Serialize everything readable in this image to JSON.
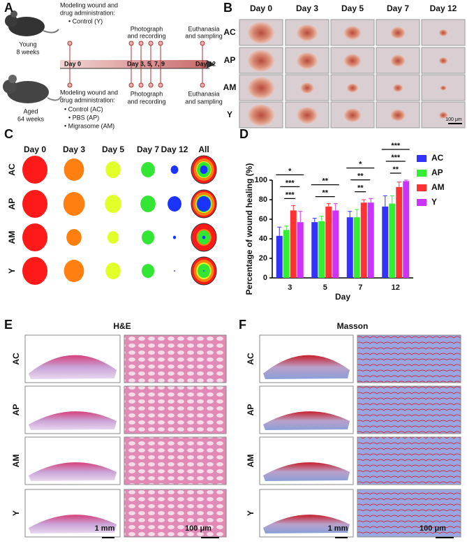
{
  "panel_a": {
    "label": "A",
    "young": [
      "Young",
      "8 weeks"
    ],
    "aged": [
      "Aged",
      "64 weeks"
    ],
    "top_model": [
      "Modeling wound and",
      "drug administration:"
    ],
    "top_groups": [
      "• Control (Y)"
    ],
    "photo_top": [
      "Photograph",
      "and recording"
    ],
    "end_top": [
      "Euthanasia",
      "and sampling"
    ],
    "days": [
      "Day 0",
      "Day 3,  5,  7,  9",
      "Day 12"
    ],
    "bottom_model": [
      "Modeling wound and",
      "drug administration:"
    ],
    "bottom_groups": [
      "• Control (AC)",
      "• PBS (AP)",
      "• Migrasome (AM)"
    ],
    "photo_bottom": [
      "Photograph",
      "and recording"
    ],
    "end_bottom": [
      "Euthanasia",
      "and sampling"
    ]
  },
  "panel_b": {
    "label": "B",
    "columns": [
      "Day 0",
      "Day 3",
      "Day 5",
      "Day 7",
      "Day 12"
    ],
    "rows": [
      "AC",
      "AP",
      "AM",
      "Y"
    ],
    "scale": "100 μm"
  },
  "panel_c": {
    "label": "C",
    "columns": [
      "Day 0",
      "Day 3",
      "Day 5",
      "Day 7",
      "Day 12",
      "All"
    ],
    "rows": [
      "AC",
      "AP",
      "AM",
      "Y"
    ]
  },
  "chart_data": {
    "type": "bar",
    "panel_label": "D",
    "x_label": "Day",
    "y_label": "Percentage of wound healing  (%)",
    "categories": [
      "3",
      "5",
      "7",
      "12"
    ],
    "series": [
      {
        "name": "AC",
        "color": "#3333ff",
        "values": [
          43,
          57,
          62,
          73
        ],
        "errors": [
          9,
          4,
          6,
          11
        ]
      },
      {
        "name": "AP",
        "color": "#33ee33",
        "values": [
          49,
          58,
          62,
          76
        ],
        "errors": [
          4,
          5,
          8,
          8
        ]
      },
      {
        "name": "AM",
        "color": "#ff3333",
        "values": [
          69,
          73,
          77,
          93
        ],
        "errors": [
          5,
          3,
          3,
          5
        ]
      },
      {
        "name": "Y",
        "color": "#cc33ff",
        "values": [
          57,
          69,
          77,
          99
        ],
        "errors": [
          11,
          7,
          4,
          1
        ]
      }
    ],
    "ylim": [
      0,
      100
    ],
    "yticks": [
      0,
      20,
      40,
      60,
      80,
      100
    ],
    "significance": [
      [
        "*",
        "***",
        "***"
      ],
      [
        "**",
        "**"
      ],
      [
        "*",
        "**",
        "**"
      ],
      [
        "***",
        "***",
        "**"
      ]
    ]
  },
  "panel_e": {
    "label": "E",
    "title": "H&E",
    "rows": [
      "AC",
      "AP",
      "AM",
      "Y"
    ],
    "scale_low": "1 mm",
    "scale_high": "100 μm"
  },
  "panel_f": {
    "label": "F",
    "title": "Masson",
    "rows": [
      "AC",
      "AP",
      "AM",
      "Y"
    ],
    "scale_low": "1 mm",
    "scale_high": "100 μm"
  }
}
